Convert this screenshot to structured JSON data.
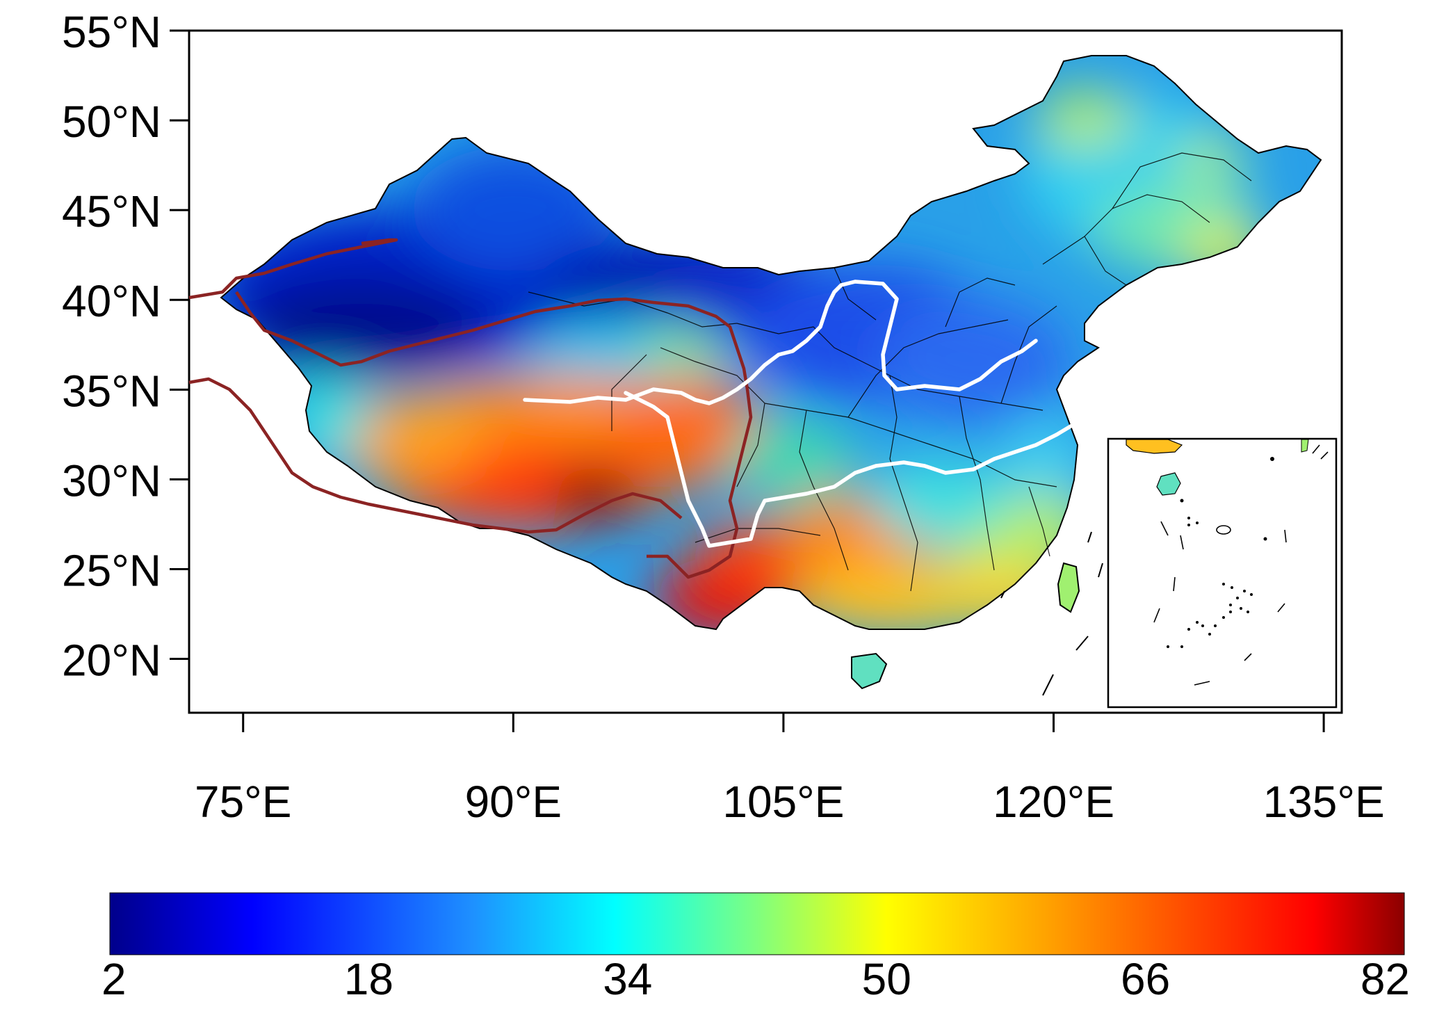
{
  "map": {
    "lat_ticks": [
      {
        "lat": 55,
        "label": "55°N"
      },
      {
        "lat": 50,
        "label": "50°N"
      },
      {
        "lat": 45,
        "label": "45°N"
      },
      {
        "lat": 40,
        "label": "40°N"
      },
      {
        "lat": 35,
        "label": "35°N"
      },
      {
        "lat": 30,
        "label": "30°N"
      },
      {
        "lat": 25,
        "label": "25°N"
      },
      {
        "lat": 20,
        "label": "20°N"
      }
    ],
    "lon_ticks": [
      {
        "lon": 75,
        "label": "75°E"
      },
      {
        "lon": 90,
        "label": "90°E"
      },
      {
        "lon": 105,
        "label": "105°E"
      },
      {
        "lon": 120,
        "label": "120°E"
      },
      {
        "lon": 135,
        "label": "135°E"
      }
    ],
    "extent": {
      "lon_min": 72,
      "lon_max": 136,
      "lat_min": 17,
      "lat_max": 55
    },
    "inset": "South China Sea islands inset",
    "boundaries": {
      "region_outline": "#8b2323",
      "divide_line": "#ffffff",
      "province_lines": "#000000"
    }
  },
  "colorbar": {
    "ticks": [
      "2",
      "18",
      "34",
      "50",
      "66",
      "82"
    ],
    "min": 2,
    "max": 82,
    "colors": [
      "#00008b",
      "#0000ff",
      "#1e90ff",
      "#00ffff",
      "#7fff7f",
      "#ffff00",
      "#ffa500",
      "#ff4500",
      "#ff0000",
      "#8b0000"
    ]
  }
}
